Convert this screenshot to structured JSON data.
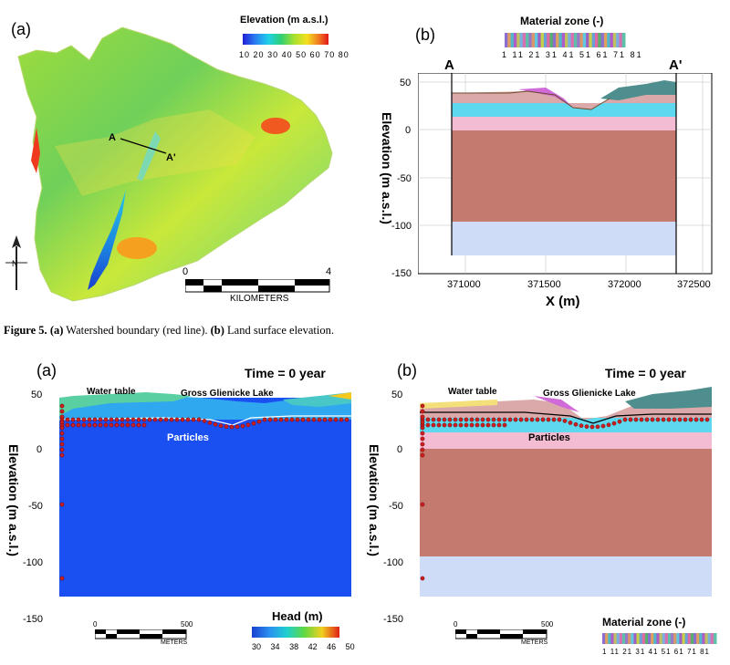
{
  "figure5": {
    "a_label": "(a)",
    "b_label": "(b)",
    "elev_legend_title": "Elevation (m a.s.l.)",
    "elev_legend_ticks": [
      "10",
      "20",
      "30",
      "40",
      "50",
      "60",
      "70",
      "80"
    ],
    "scale_left": "0",
    "scale_right": "4",
    "scale_unit": "KILOMETERS",
    "section_A": "A",
    "section_A_prime": "A'",
    "material_title": "Material zone (-)",
    "material_ticks": [
      "1",
      "11",
      "21",
      "31",
      "41",
      "51",
      "61",
      "71",
      "81"
    ],
    "ylabel": "Elevation (m a.s.l.)",
    "xlabel": "X (m)",
    "yticks": [
      "50",
      "0",
      "-50",
      "-100",
      "-150"
    ],
    "xticks": [
      "371000",
      "371500",
      "372000",
      "372500"
    ],
    "caption_fig": "Figure 5.",
    "caption_a": "(a)",
    "caption_a_text": "Watershed boundary (red line).",
    "caption_b": "(b)",
    "caption_b_text": "Land surface elevation."
  },
  "figure6": {
    "a_label": "(a)",
    "b_label": "(b)",
    "time_label": "Time = 0 year",
    "water_table": "Water table",
    "lake": "Gross Glienicke Lake",
    "particles": "Particles",
    "ylabel": "Elevation (m a.s.l.)",
    "yticks": [
      "50",
      "0",
      "-50",
      "-100",
      "-150"
    ],
    "scale_left": "0",
    "scale_right": "500",
    "scale_unit": "METERS",
    "head_title": "Head (m)",
    "head_ticks": [
      "30",
      "34",
      "38",
      "42",
      "46",
      "50"
    ],
    "material_title": "Material zone (-)",
    "material_ticks": [
      "1",
      "11",
      "21",
      "31",
      "41",
      "51",
      "61",
      "71",
      "81"
    ]
  },
  "colors": {
    "brown": "#c47a6e",
    "lightblue": "#cfdcf7",
    "cyan": "#5ed8ee",
    "pink": "#f4bcd2",
    "blue": "#1a4ff2",
    "particle": "#cc1f1f"
  }
}
